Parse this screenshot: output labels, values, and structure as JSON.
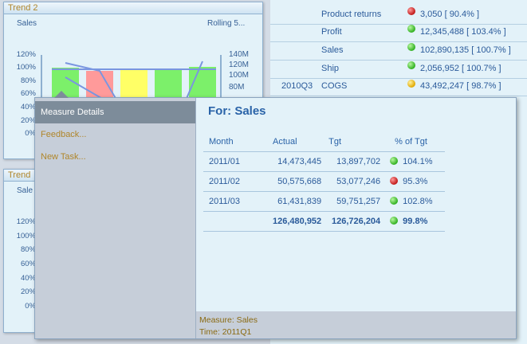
{
  "trend1": {
    "title": "Trend 2",
    "left_label": "Sales",
    "right_label": "Rolling 5...",
    "left_ticks": [
      "120%",
      "100%",
      "80%",
      "60%",
      "40%",
      "20%",
      "0%"
    ],
    "right_ticks": [
      "140M",
      "120M",
      "100M",
      "80M"
    ],
    "bar_colors": [
      "#7cf06a",
      "#ff9a9a",
      "#ffff66",
      "#7cf06a",
      "#7cf06a"
    ]
  },
  "trend2": {
    "title": "Trend",
    "left_label": "Sale",
    "left_ticks": [
      "120%",
      "100%",
      "80%",
      "60%",
      "40%",
      "20%",
      "0%"
    ]
  },
  "bg_table": {
    "rows": [
      {
        "period": "",
        "measure": "Product returns",
        "status": "red",
        "value": "3,050 [ 90.4% ]"
      },
      {
        "period": "",
        "measure": "Profit",
        "status": "green",
        "value": "12,345,488 [ 103.4% ]"
      },
      {
        "period": "",
        "measure": "Sales",
        "status": "green",
        "value": "102,890,135 [ 100.7% ]"
      },
      {
        "period": "",
        "measure": "Ship",
        "status": "green",
        "value": "2,056,952 [ 100.7% ]"
      },
      {
        "period": "2010Q3",
        "measure": "COGS",
        "status": "yellow",
        "value": "43,492,247 [ 98.7% ]"
      }
    ]
  },
  "popup": {
    "menu": {
      "measure_details": "Measure Details",
      "feedback": "Feedback...",
      "new_task": "New Task..."
    },
    "heading": "For: Sales",
    "columns": [
      "Month",
      "Actual",
      "Tgt",
      "% of Tgt"
    ],
    "rows": [
      {
        "month": "2011/01",
        "actual": "14,473,445",
        "tgt": "13,897,702",
        "status": "green",
        "pct": "104.1%"
      },
      {
        "month": "2011/02",
        "actual": "50,575,668",
        "tgt": "53,077,246",
        "status": "red",
        "pct": "95.3%"
      },
      {
        "month": "2011/03",
        "actual": "61,431,839",
        "tgt": "59,751,257",
        "status": "green",
        "pct": "102.8%"
      }
    ],
    "total": {
      "actual": "126,480,952",
      "tgt": "126,726,204",
      "status": "green",
      "pct": "99.8%"
    },
    "footer": {
      "measure": "Measure: Sales",
      "time": "Time: 2011Q1"
    }
  }
}
